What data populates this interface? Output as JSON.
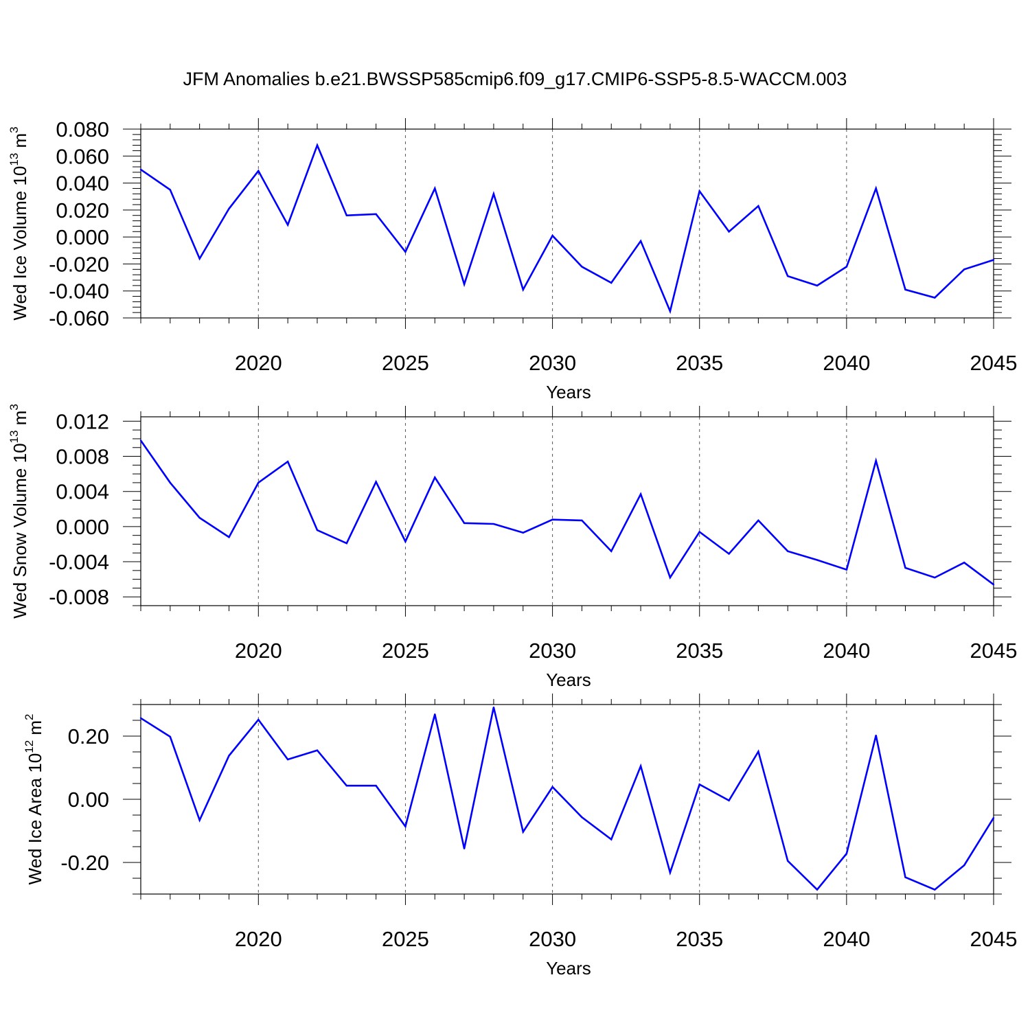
{
  "title": "JFM Anomalies b.e21.BWSSP585cmip6.f09_g17.CMIP6-SSP5-8.5-WACCM.003",
  "colors": {
    "line": "#0000ff",
    "axis": "#000000",
    "grid": "#000000"
  },
  "chart_data": [
    {
      "type": "line",
      "ylabel": {
        "text": "Wed Ice Volume 10",
        "sup": "13",
        "unit": " m",
        "unit_sup": "3"
      },
      "xlabel": "Years",
      "xlim": [
        2016,
        2045
      ],
      "ylim": [
        -0.06,
        0.08
      ],
      "x_ticks": [
        2020,
        2025,
        2030,
        2035,
        2040,
        2045
      ],
      "y_ticks": [
        -0.06,
        -0.04,
        -0.02,
        0.0,
        0.02,
        0.04,
        0.06,
        0.08
      ],
      "y_tick_labels": [
        "-0.060",
        "-0.040",
        "-0.020",
        "0.000",
        "0.020",
        "0.040",
        "0.060",
        "0.080"
      ],
      "y_minor_step": 0.004,
      "grid": "vertical dashed at major x ticks",
      "x": [
        2016,
        2017,
        2018,
        2019,
        2020,
        2021,
        2022,
        2023,
        2024,
        2025,
        2026,
        2027,
        2028,
        2029,
        2030,
        2031,
        2032,
        2033,
        2034,
        2035,
        2036,
        2037,
        2038,
        2039,
        2040,
        2041,
        2042,
        2043,
        2044,
        2045
      ],
      "series": [
        {
          "values": [
            0.05,
            0.035,
            -0.016,
            0.021,
            0.049,
            0.009,
            0.068,
            0.016,
            0.017,
            -0.011,
            0.036,
            -0.035,
            0.032,
            -0.039,
            0.001,
            -0.022,
            -0.034,
            -0.003,
            -0.055,
            0.034,
            0.004,
            0.023,
            -0.029,
            -0.036,
            -0.022,
            0.036,
            -0.039,
            -0.045,
            -0.024,
            -0.017
          ]
        }
      ]
    },
    {
      "type": "line",
      "ylabel": {
        "text": "Wed Snow Volume 10",
        "sup": "13",
        "unit": " m",
        "unit_sup": "3"
      },
      "xlabel": "Years",
      "xlim": [
        2016,
        2045
      ],
      "ylim": [
        -0.009,
        0.0125
      ],
      "x_ticks": [
        2020,
        2025,
        2030,
        2035,
        2040,
        2045
      ],
      "y_ticks": [
        -0.008,
        -0.004,
        0.0,
        0.004,
        0.008,
        0.012
      ],
      "y_tick_labels": [
        "-0.008",
        "-0.004",
        "0.000",
        "0.004",
        "0.008",
        "0.012"
      ],
      "y_minor_step": 0.001,
      "grid": "vertical dashed at major x ticks",
      "x": [
        2016,
        2017,
        2018,
        2019,
        2020,
        2021,
        2022,
        2023,
        2024,
        2025,
        2026,
        2027,
        2028,
        2029,
        2030,
        2031,
        2032,
        2033,
        2034,
        2035,
        2036,
        2037,
        2038,
        2039,
        2040,
        2041,
        2042,
        2043,
        2044,
        2045
      ],
      "series": [
        {
          "values": [
            0.0098,
            0.005,
            0.001,
            -0.0012,
            0.005,
            0.0074,
            -0.0004,
            -0.0019,
            0.0051,
            -0.0017,
            0.0056,
            0.0004,
            0.0003,
            -0.0007,
            0.0008,
            0.0007,
            -0.0028,
            0.0037,
            -0.0058,
            -0.0006,
            -0.0031,
            0.0007,
            -0.0028,
            -0.0038,
            -0.0049,
            0.0075,
            -0.0047,
            -0.0058,
            -0.0041,
            -0.0066
          ]
        }
      ]
    },
    {
      "type": "line",
      "ylabel": {
        "text": "Wed Ice Area 10",
        "sup": "12",
        "unit": " m",
        "unit_sup": "2"
      },
      "xlabel": "Years",
      "xlim": [
        2016,
        2045
      ],
      "ylim": [
        -0.3,
        0.3
      ],
      "x_ticks": [
        2020,
        2025,
        2030,
        2035,
        2040,
        2045
      ],
      "y_ticks": [
        -0.2,
        0.0,
        0.2
      ],
      "y_tick_labels": [
        "-0.20",
        "0.00",
        "0.20"
      ],
      "y_minor_step": 0.05,
      "grid": "vertical dashed at major x ticks",
      "x": [
        2016,
        2017,
        2018,
        2019,
        2020,
        2021,
        2022,
        2023,
        2024,
        2025,
        2026,
        2027,
        2028,
        2029,
        2030,
        2031,
        2032,
        2033,
        2034,
        2035,
        2036,
        2037,
        2038,
        2039,
        2040,
        2041,
        2042,
        2043,
        2044,
        2045
      ],
      "series": [
        {
          "values": [
            0.257,
            0.198,
            -0.066,
            0.138,
            0.252,
            0.126,
            0.155,
            0.043,
            0.043,
            -0.086,
            0.269,
            -0.156,
            0.291,
            -0.103,
            0.039,
            -0.057,
            -0.127,
            0.105,
            -0.232,
            0.047,
            -0.004,
            0.151,
            -0.195,
            -0.286,
            -0.172,
            0.202,
            -0.247,
            -0.286,
            -0.209,
            -0.059
          ]
        }
      ]
    }
  ]
}
